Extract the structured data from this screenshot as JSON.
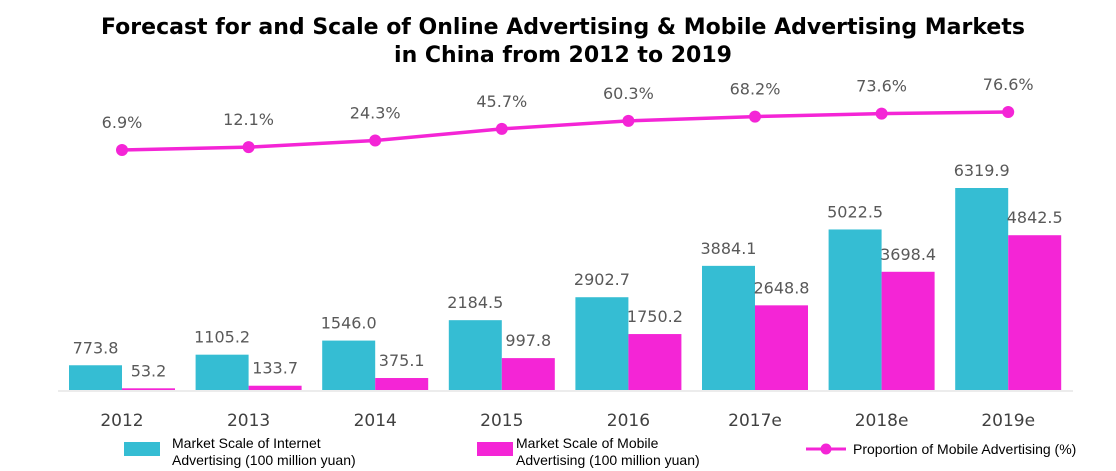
{
  "chart_data": {
    "type": "bar",
    "title": "Forecast for and Scale of Online Advertising & Mobile Advertising Markets\nin China from 2012 to 2019",
    "categories": [
      "2012",
      "2013",
      "2014",
      "2015",
      "2016",
      "2017e",
      "2018e",
      "2019e"
    ],
    "series": [
      {
        "name": "Market Scale of Internet Advertising (100 million yuan)",
        "type": "bar",
        "color": "#35BDD3",
        "values": [
          773.8,
          1105.2,
          1546.0,
          2184.5,
          2902.7,
          3884.1,
          5022.5,
          6319.9
        ],
        "labels": [
          "773.8",
          "1105.2",
          "1546.0",
          "2184.5",
          "2902.7",
          "3884.1",
          "5022.5",
          "6319.9"
        ]
      },
      {
        "name": "Market Scale of Mobile Advertising (100 million yuan)",
        "type": "bar",
        "color": "#F425D6",
        "values": [
          53.2,
          133.7,
          375.1,
          997.8,
          1750.2,
          2648.8,
          3698.4,
          4842.5
        ],
        "labels": [
          "53.2",
          "133.7",
          "375.1",
          "997.8",
          "1750.2",
          "2648.8",
          "3698.4",
          "4842.5"
        ]
      },
      {
        "name": "Proportion of Mobile Advertising (%)",
        "type": "line",
        "color": "#F425D6",
        "values": [
          6.9,
          12.1,
          24.3,
          45.7,
          60.3,
          68.2,
          73.6,
          76.6
        ],
        "labels": [
          "6.9%",
          "12.1%",
          "24.3%",
          "45.7%",
          "60.3%",
          "68.2%",
          "73.6%",
          "76.6%"
        ]
      }
    ],
    "legend": {
      "position": "bottom",
      "items": [
        {
          "lines": [
            "Market Scale of Internet",
            "Advertising (100 million yuan)"
          ],
          "color": "#35BDD3",
          "marker": "box"
        },
        {
          "lines": [
            "Market Scale of Mobile",
            "Advertising (100 million yuan)"
          ],
          "color": "#F425D6",
          "marker": "box"
        },
        {
          "lines": [
            "Proportion of Mobile Advertising (%)"
          ],
          "color": "#F425D6",
          "marker": "line"
        }
      ]
    },
    "grid": false
  }
}
